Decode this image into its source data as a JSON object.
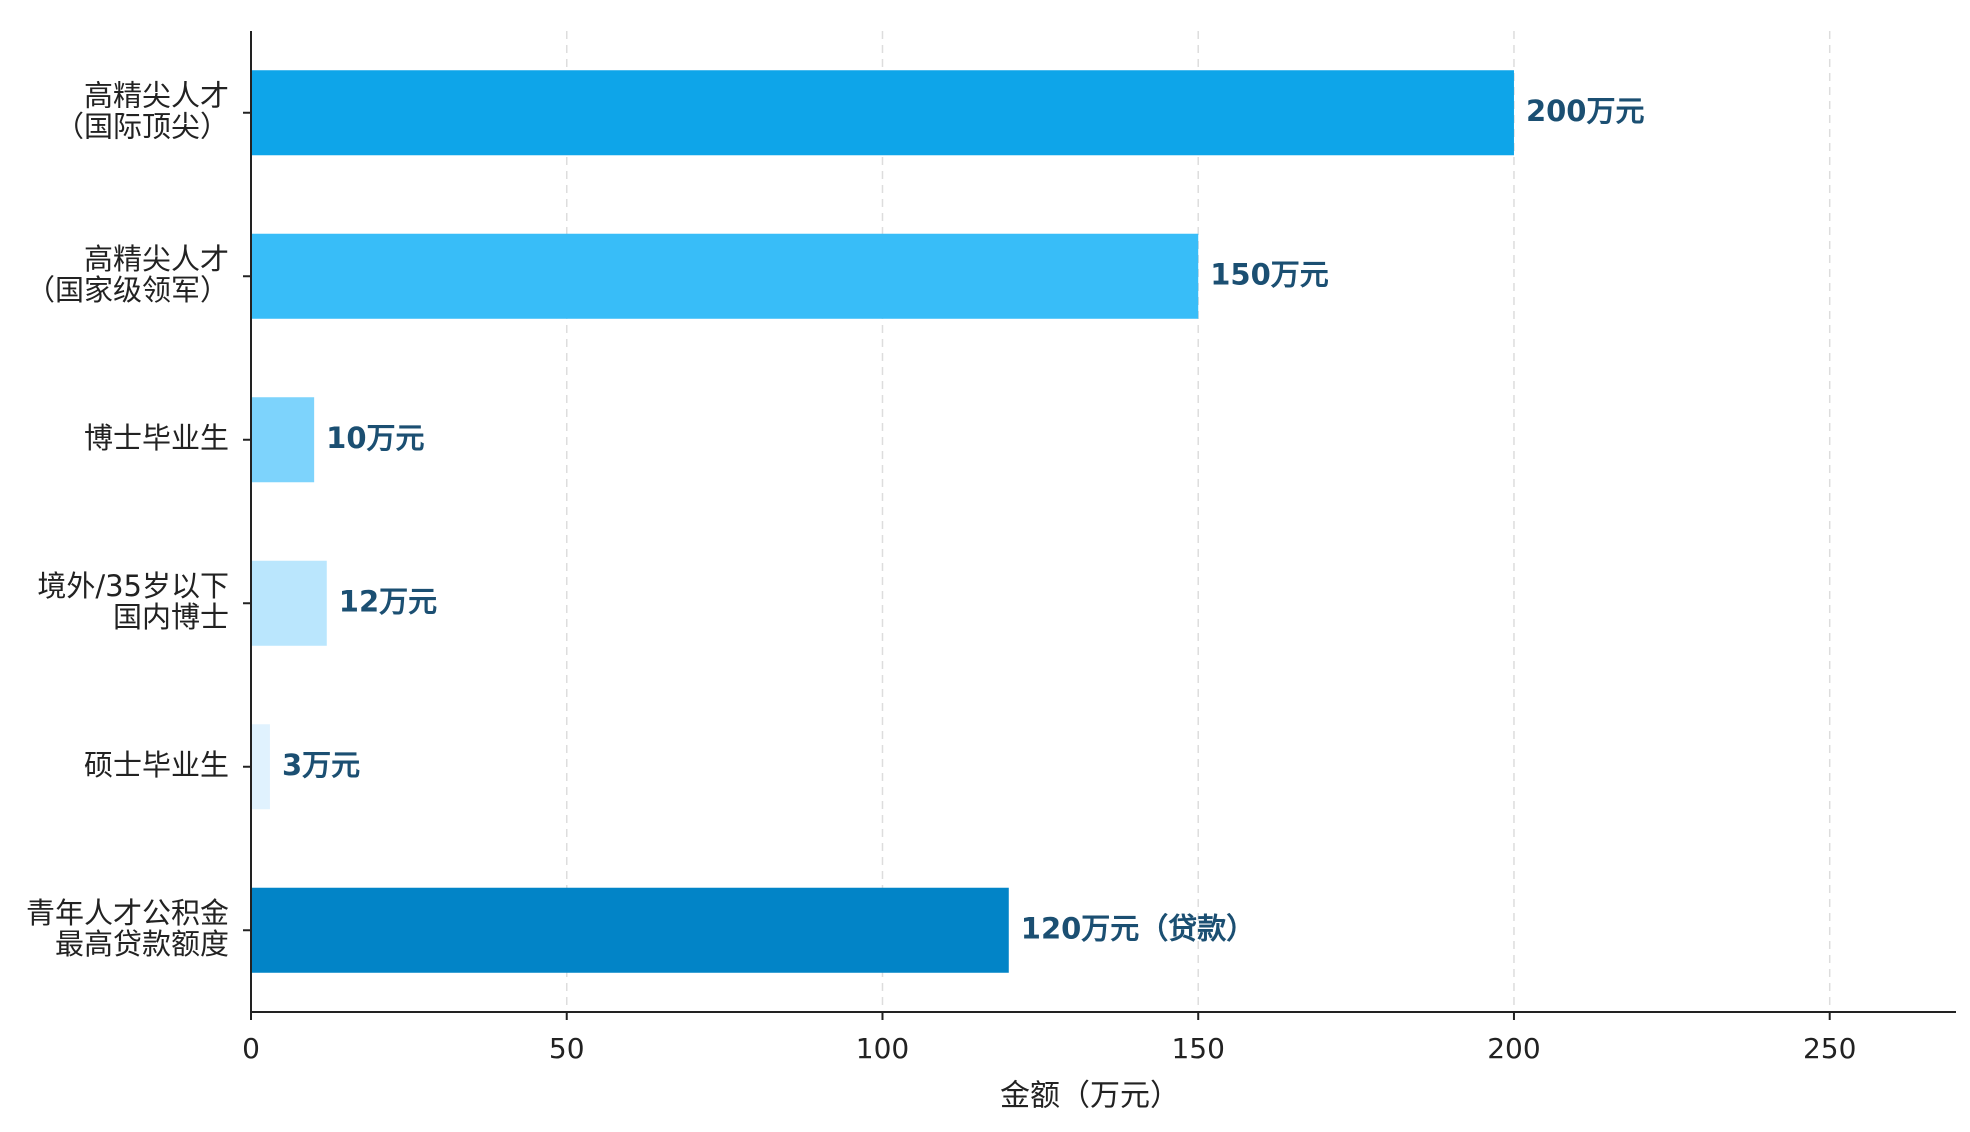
{
  "chart_data": {
    "type": "barh",
    "categories": [
      [
        "高精尖人才",
        "（国际顶尖）"
      ],
      [
        "高精尖人才",
        "（国家级领军）"
      ],
      [
        "博士毕业生"
      ],
      [
        "境外/35岁以下",
        "国内博士"
      ],
      [
        "硕士毕业生"
      ],
      [
        "青年人才公积金",
        "最高贷款额度"
      ]
    ],
    "values": [
      200,
      150,
      10,
      12,
      3,
      120
    ],
    "value_labels": [
      "200万元",
      "150万元",
      "10万元",
      "12万元",
      "3万元",
      "120万元（贷款）"
    ],
    "colors": [
      "#0ea5e9",
      "#38bdf8",
      "#7dd3fc",
      "#bae6fd",
      "#e0f2fe",
      "#0284c7"
    ],
    "xlabel": "金额（万元）",
    "xlim": [
      0,
      270
    ],
    "xticks": [
      0,
      50,
      100,
      150,
      200,
      250
    ],
    "grid": true
  }
}
